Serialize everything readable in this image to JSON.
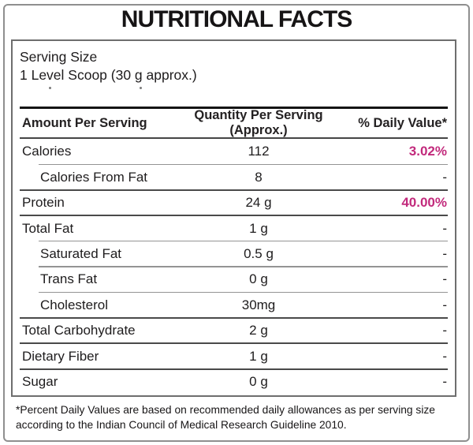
{
  "title": "NUTRITIONAL FACTS",
  "serving": {
    "label": "Serving Size",
    "value": "1 Level Scoop (30 g approx.)"
  },
  "table": {
    "headers": {
      "amount": "Amount Per Serving",
      "quantity": "Quantity Per Serving (Approx.)",
      "daily_value": "% Daily Value*"
    },
    "rows": [
      {
        "label": "Calories",
        "qty": "112",
        "dv": "3.02%",
        "indent": false,
        "pink": true,
        "sep": "full"
      },
      {
        "label": "Calories From Fat",
        "qty": "8",
        "dv": "-",
        "indent": true,
        "pink": false,
        "sep": "indent"
      },
      {
        "label": "Protein",
        "qty": "24 g",
        "dv": "40.00%",
        "indent": false,
        "pink": true,
        "sep": "full"
      },
      {
        "label": "Total Fat",
        "qty": "1 g",
        "dv": "-",
        "indent": false,
        "pink": false,
        "sep": "full"
      },
      {
        "label": "Saturated Fat",
        "qty": "0.5 g",
        "dv": "-",
        "indent": true,
        "pink": false,
        "sep": "indent"
      },
      {
        "label": "Trans Fat",
        "qty": "0 g",
        "dv": "-",
        "indent": true,
        "pink": false,
        "sep": "indent"
      },
      {
        "label": "Cholesterol",
        "qty": "30mg",
        "dv": "-",
        "indent": true,
        "pink": false,
        "sep": "indent"
      },
      {
        "label": "Total Carbohydrate",
        "qty": "2 g",
        "dv": "-",
        "indent": false,
        "pink": false,
        "sep": "full"
      },
      {
        "label": "Dietary Fiber",
        "qty": "1 g",
        "dv": "-",
        "indent": false,
        "pink": false,
        "sep": "full"
      },
      {
        "label": "Sugar",
        "qty": "0 g",
        "dv": "-",
        "indent": false,
        "pink": false,
        "sep": "full"
      }
    ]
  },
  "footnote": {
    "line1": "*Percent Daily Values are based on recommended daily allowances as per serving size",
    "line2": "according to the Indian Council of Medical Research Guideline 2010."
  },
  "colors": {
    "highlight_pink": "#c22a7c",
    "text": "#1e1c1d",
    "divider_dark": "#4a4a4a",
    "divider_light": "#949494"
  }
}
